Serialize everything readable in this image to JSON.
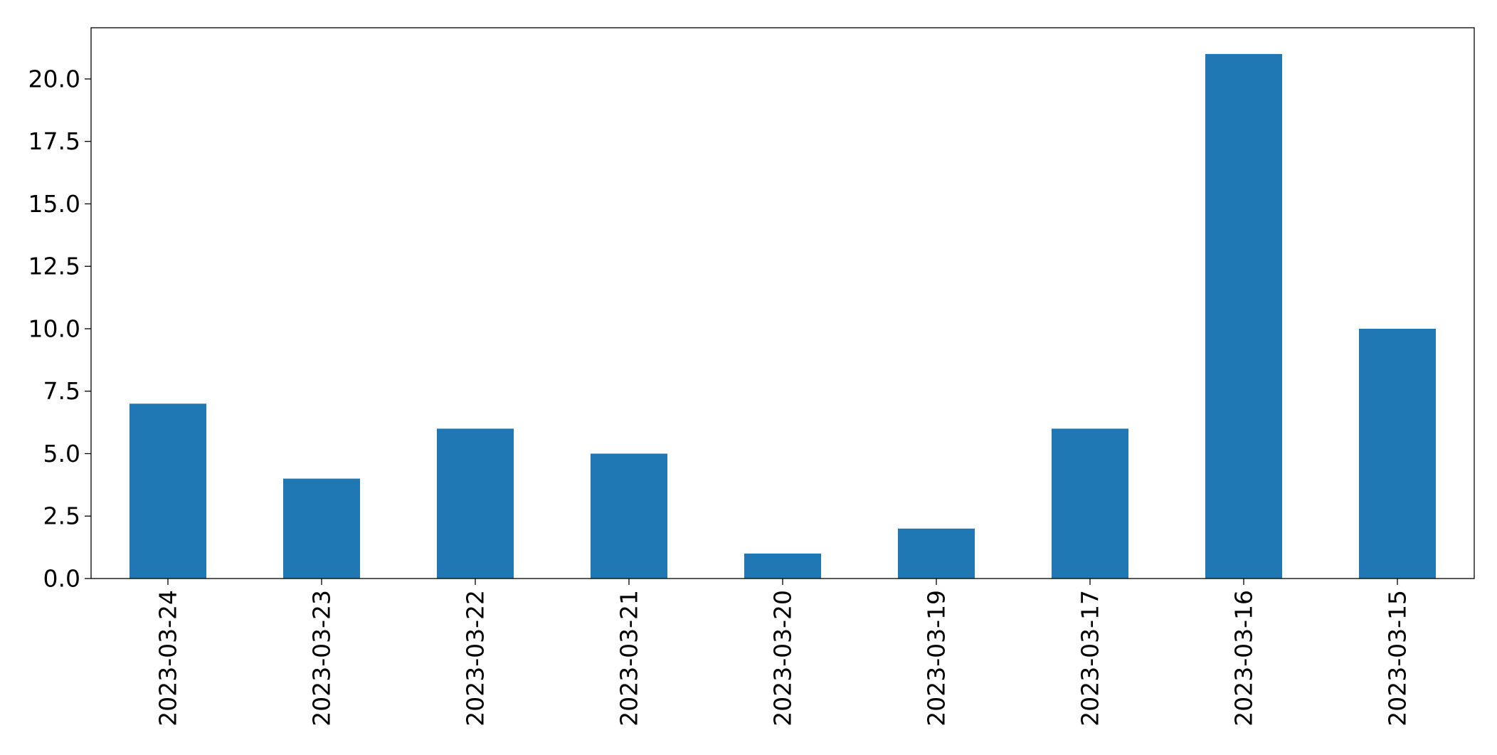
{
  "chart_data": {
    "type": "bar",
    "title": "",
    "xlabel": "",
    "ylabel": "",
    "categories": [
      "2023-03-24",
      "2023-03-23",
      "2023-03-22",
      "2023-03-21",
      "2023-03-20",
      "2023-03-19",
      "2023-03-17",
      "2023-03-16",
      "2023-03-15"
    ],
    "values": [
      7,
      4,
      6,
      5,
      1,
      2,
      6,
      21,
      10
    ],
    "ylim": [
      0,
      22.05
    ],
    "yticks": [
      0.0,
      2.5,
      5.0,
      7.5,
      10.0,
      12.5,
      15.0,
      17.5,
      20.0
    ],
    "ytick_labels": [
      "0.0",
      "2.5",
      "5.0",
      "7.5",
      "10.0",
      "12.5",
      "15.0",
      "17.5",
      "20.0"
    ],
    "bar_color": "#1f77b4",
    "grid": false,
    "legend": "none"
  }
}
